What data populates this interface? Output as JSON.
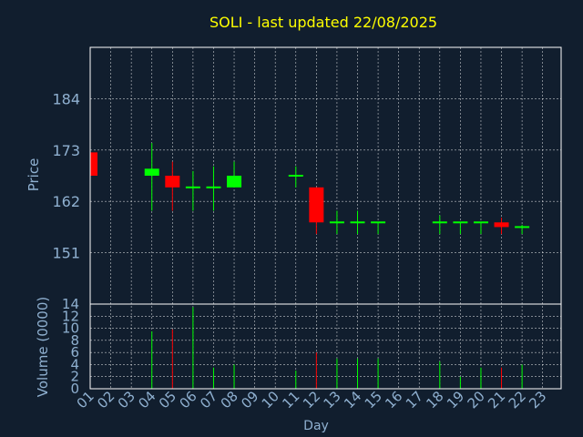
{
  "chart_data": {
    "type": "candlestick",
    "title": "SOLI - last updated 22/08/2025",
    "xlabel": "Day",
    "price_panel": {
      "ylabel": "Price",
      "yticks": [
        151,
        162,
        173,
        184
      ],
      "ylim": [
        140,
        195
      ]
    },
    "volume_panel": {
      "ylabel": "Volume (0000)",
      "yticks": [
        0,
        2,
        4,
        6,
        8,
        10,
        12,
        14
      ],
      "ylim": [
        0,
        14
      ]
    },
    "x_ticks": [
      "01",
      "02",
      "03",
      "04",
      "05",
      "06",
      "07",
      "08",
      "09",
      "10",
      "11",
      "12",
      "13",
      "14",
      "15",
      "16",
      "17",
      "18",
      "19",
      "20",
      "21",
      "22",
      "23"
    ],
    "candles": [
      {
        "day": "01",
        "open": 172.5,
        "high": 172.5,
        "low": 167.5,
        "close": 167.5,
        "volume": 0.0
      },
      {
        "day": "04",
        "open": 167.5,
        "high": 174.5,
        "low": 160.0,
        "close": 169.0,
        "volume": 9.5
      },
      {
        "day": "05",
        "open": 167.5,
        "high": 170.5,
        "low": 160.0,
        "close": 165.0,
        "volume": 9.8
      },
      {
        "day": "06",
        "open": 165.0,
        "high": 168.5,
        "low": 160.0,
        "close": 165.0,
        "volume": 13.5
      },
      {
        "day": "07",
        "open": 165.0,
        "high": 169.5,
        "low": 160.0,
        "close": 165.0,
        "volume": 3.5
      },
      {
        "day": "08",
        "open": 165.0,
        "high": 170.5,
        "low": 165.0,
        "close": 167.5,
        "volume": 4.0
      },
      {
        "day": "11",
        "open": 167.5,
        "high": 169.5,
        "low": 165.0,
        "close": 167.5,
        "volume": 3.0
      },
      {
        "day": "12",
        "open": 165.0,
        "high": 165.0,
        "low": 155.0,
        "close": 157.5,
        "volume": 6.0
      },
      {
        "day": "13",
        "open": 157.5,
        "high": 160.0,
        "low": 155.0,
        "close": 157.5,
        "volume": 5.0
      },
      {
        "day": "14",
        "open": 157.5,
        "high": 160.0,
        "low": 155.0,
        "close": 157.5,
        "volume": 5.0
      },
      {
        "day": "15",
        "open": 157.5,
        "high": 157.5,
        "low": 155.0,
        "close": 157.5,
        "volume": 5.0
      },
      {
        "day": "18",
        "open": 157.5,
        "high": 159.0,
        "low": 155.0,
        "close": 157.5,
        "volume": 4.5
      },
      {
        "day": "19",
        "open": 157.5,
        "high": 157.5,
        "low": 155.0,
        "close": 157.5,
        "volume": 2.0
      },
      {
        "day": "20",
        "open": 157.5,
        "high": 157.5,
        "low": 155.0,
        "close": 157.5,
        "volume": 3.5
      },
      {
        "day": "21",
        "open": 157.5,
        "high": 158.5,
        "low": 155.0,
        "close": 156.5,
        "volume": 3.5
      },
      {
        "day": "22",
        "open": 156.5,
        "high": 157.0,
        "low": 155.0,
        "close": 156.5,
        "volume": 4.0
      }
    ],
    "colors": {
      "background": "#111e2e",
      "up": "#00ff00",
      "down": "#ff0000",
      "title": "#ffff00",
      "axis_text": "#8fb0d0",
      "frame": "#ffffff",
      "grid": "#ffffff"
    },
    "grid": true
  }
}
